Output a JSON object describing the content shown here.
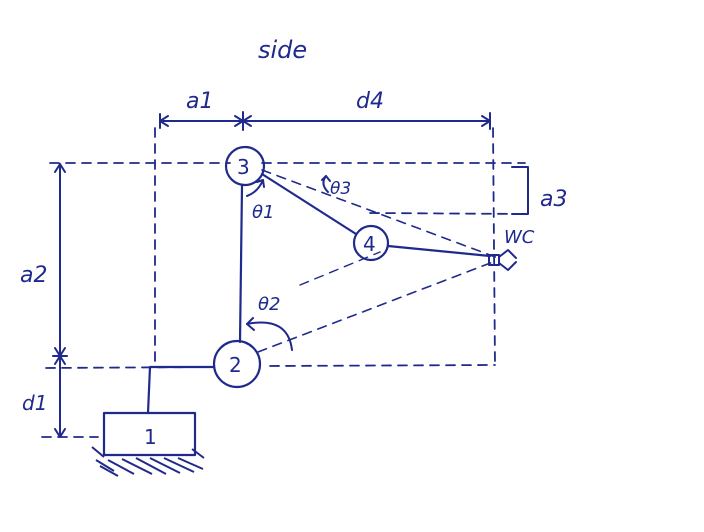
{
  "diagram": {
    "title": "side",
    "labels": {
      "a1": "a1",
      "d4": "d4",
      "a3": "a3",
      "a2": "a2",
      "d1": "d1",
      "wc": "WC",
      "theta1": "θ1",
      "theta2": "θ2",
      "theta3": "θ3"
    },
    "joints": {
      "j1": "1",
      "j2": "2",
      "j3": "3",
      "j4": "4"
    },
    "colors": {
      "ink": "#1f2a8c",
      "paper": "#ffffff"
    }
  }
}
